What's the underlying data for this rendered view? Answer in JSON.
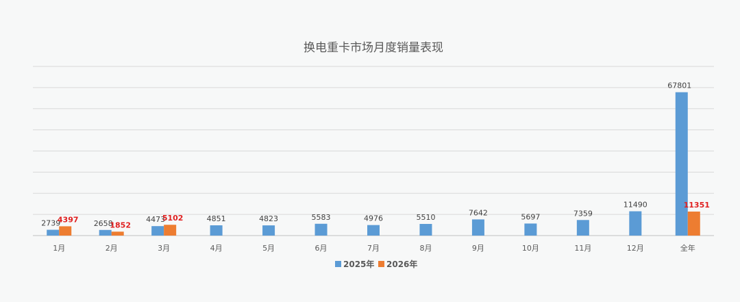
{
  "chart_data": {
    "type": "bar",
    "title": "换电重卡市场月度销量表现",
    "categories": [
      "1月",
      "2月",
      "3月",
      "4月",
      "5月",
      "6月",
      "7月",
      "8月",
      "9月",
      "10月",
      "11月",
      "12月",
      "全年"
    ],
    "series": [
      {
        "name": "2025年",
        "color": "#5b9bd5",
        "values": [
          2739,
          2658,
          4473,
          4851,
          4823,
          5583,
          4976,
          5510,
          7642,
          5697,
          7359,
          11490,
          67801
        ]
      },
      {
        "name": "2026年",
        "color": "#ed7d31",
        "values": [
          4397,
          1852,
          5102,
          null,
          null,
          null,
          null,
          null,
          null,
          null,
          null,
          null,
          11351
        ]
      }
    ],
    "ylim": [
      0,
      80000
    ],
    "gridlines": 8,
    "grid": true,
    "legend": "bottom",
    "xlabel": "",
    "ylabel": ""
  }
}
